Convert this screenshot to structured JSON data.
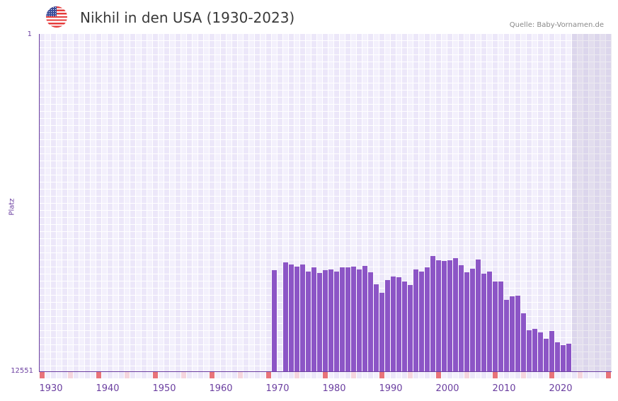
{
  "header": {
    "title": "Nikhil in den USA (1930-2023)",
    "flag_icon": "us-flag-icon",
    "source": "Quelle: Baby-Vornamen.de"
  },
  "colors": {
    "bar": "#8c55c6",
    "axis": "#6b3fa0",
    "decade_marker": "#e8737a",
    "half_decade_marker": "#f5d5de",
    "grid_light": "#f3f0fc",
    "grid_dark": "#ece7f9"
  },
  "chart_data": {
    "type": "bar",
    "title": "Nikhil in den USA (1930-2023)",
    "xlabel": "",
    "ylabel": "Platz",
    "y_inverted": true,
    "ylim": [
      12551,
      1
    ],
    "xlim": [
      1928,
      2028
    ],
    "ytick_labels": [
      "1",
      "12551"
    ],
    "xtick_labels": [
      "1930",
      "1940",
      "1950",
      "1960",
      "1970",
      "1980",
      "1990",
      "2000",
      "2010",
      "2020"
    ],
    "grid": true,
    "legend": null,
    "shaded_region": {
      "from": 2022,
      "to": 2028
    },
    "categories": [
      1969,
      1971,
      1972,
      1973,
      1974,
      1975,
      1976,
      1977,
      1978,
      1979,
      1980,
      1981,
      1982,
      1983,
      1984,
      1985,
      1986,
      1987,
      1988,
      1989,
      1990,
      1991,
      1992,
      1993,
      1994,
      1995,
      1996,
      1997,
      1998,
      1999,
      2000,
      2001,
      2002,
      2003,
      2004,
      2005,
      2006,
      2007,
      2008,
      2009,
      2010,
      2011,
      2012,
      2013,
      2014,
      2015,
      2016,
      2017,
      2018,
      2019,
      2020,
      2021
    ],
    "values": [
      8790,
      8500,
      8580,
      8660,
      8580,
      8840,
      8690,
      8900,
      8790,
      8770,
      8840,
      8690,
      8690,
      8660,
      8770,
      8640,
      8870,
      9320,
      9630,
      9160,
      9030,
      9050,
      9210,
      9340,
      8770,
      8840,
      8690,
      8260,
      8420,
      8450,
      8420,
      8340,
      8600,
      8870,
      8740,
      8400,
      8920,
      8840,
      9210,
      9210,
      9890,
      9760,
      9740,
      10390,
      11020,
      10970,
      11100,
      11340,
      11050,
      11470,
      11570,
      11520
    ]
  }
}
